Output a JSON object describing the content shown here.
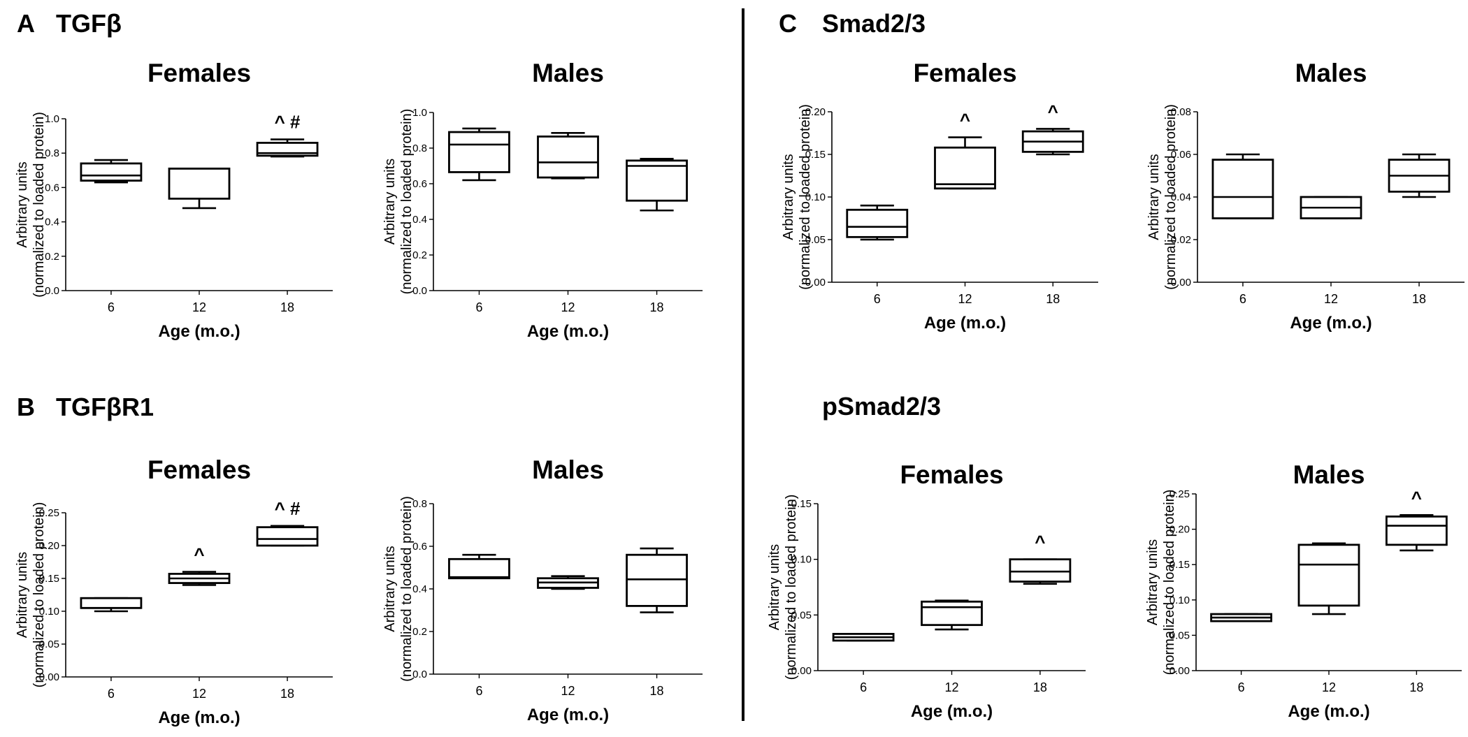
{
  "figure": {
    "panels": [
      {
        "letter": "A",
        "title": "TGFβ"
      },
      {
        "letter": "B",
        "title": "TGFβR1"
      },
      {
        "letter": "C",
        "title": "Smad2/3"
      }
    ],
    "subtitle_c2": "pSmad2/3"
  },
  "chart_data": [
    {
      "type": "box",
      "panel": "A",
      "title": "Females",
      "xlabel": "Age (m.o.)",
      "ylabel": [
        "Arbitrary units",
        "(normalized to loaded protein)"
      ],
      "ylim": [
        0,
        1.0
      ],
      "yticks": [
        "0.0",
        "0.2",
        "0.4",
        "0.6",
        "0.8",
        "1.0"
      ],
      "categories": [
        "6",
        "12",
        "18"
      ],
      "boxes": [
        {
          "min": 0.63,
          "q1": 0.64,
          "median": 0.67,
          "q3": 0.74,
          "max": 0.76
        },
        {
          "min": 0.48,
          "q1": 0.535,
          "median": 0.71,
          "q3": 0.71,
          "max": 0.71
        },
        {
          "min": 0.78,
          "q1": 0.785,
          "median": 0.8,
          "q3": 0.86,
          "max": 0.88
        }
      ],
      "annotations": [
        "",
        "",
        "^ #"
      ]
    },
    {
      "type": "box",
      "panel": "A",
      "title": "Males",
      "xlabel": "Age (m.o.)",
      "ylabel": [
        "Arbitrary units",
        "(normalized to loaded protein)"
      ],
      "ylim": [
        0,
        1.0
      ],
      "yticks": [
        "0.0",
        "0.2",
        "0.4",
        "0.6",
        "0.8",
        "1.0"
      ],
      "categories": [
        "6",
        "12",
        "18"
      ],
      "boxes": [
        {
          "min": 0.62,
          "q1": 0.665,
          "median": 0.82,
          "q3": 0.89,
          "max": 0.91
        },
        {
          "min": 0.63,
          "q1": 0.635,
          "median": 0.72,
          "q3": 0.865,
          "max": 0.885
        },
        {
          "min": 0.45,
          "q1": 0.505,
          "median": 0.7,
          "q3": 0.73,
          "max": 0.74
        }
      ],
      "annotations": [
        "",
        "",
        ""
      ]
    },
    {
      "type": "box",
      "panel": "B",
      "title": "Females",
      "xlabel": "Age (m.o.)",
      "ylabel": [
        "Arbitrary units",
        "(normalized to loaded protein)"
      ],
      "ylim": [
        0,
        0.25
      ],
      "yticks": [
        "0.00",
        "0.05",
        "0.10",
        "0.15",
        "0.20",
        "0.25"
      ],
      "categories": [
        "6",
        "12",
        "18"
      ],
      "boxes": [
        {
          "min": 0.1,
          "q1": 0.105,
          "median": 0.105,
          "q3": 0.12,
          "max": 0.12
        },
        {
          "min": 0.14,
          "q1": 0.143,
          "median": 0.15,
          "q3": 0.157,
          "max": 0.16
        },
        {
          "min": 0.2,
          "q1": 0.2,
          "median": 0.21,
          "q3": 0.228,
          "max": 0.23
        }
      ],
      "annotations": [
        "",
        "^",
        "^ #"
      ]
    },
    {
      "type": "box",
      "panel": "B",
      "title": "Males",
      "xlabel": "Age (m.o.)",
      "ylabel": [
        "Arbitrary units",
        "(normalized to loaded protein)"
      ],
      "ylim": [
        0,
        0.8
      ],
      "yticks": [
        "0.0",
        "0.2",
        "0.4",
        "0.6",
        "0.8"
      ],
      "categories": [
        "6",
        "12",
        "18"
      ],
      "boxes": [
        {
          "min": 0.45,
          "q1": 0.45,
          "median": 0.455,
          "q3": 0.54,
          "max": 0.56
        },
        {
          "min": 0.4,
          "q1": 0.405,
          "median": 0.43,
          "q3": 0.45,
          "max": 0.46
        },
        {
          "min": 0.29,
          "q1": 0.32,
          "median": 0.445,
          "q3": 0.56,
          "max": 0.59
        }
      ],
      "annotations": [
        "",
        "",
        ""
      ]
    },
    {
      "type": "box",
      "panel": "C",
      "title": "Females",
      "xlabel": "Age (m.o.)",
      "ylabel": [
        "Arbitrary units",
        "(normalized to loaded protein)"
      ],
      "ylim": [
        0,
        0.2
      ],
      "yticks": [
        "0.00",
        "0.05",
        "0.10",
        "0.15",
        "0.20"
      ],
      "categories": [
        "6",
        "12",
        "18"
      ],
      "boxes": [
        {
          "min": 0.05,
          "q1": 0.053,
          "median": 0.065,
          "q3": 0.085,
          "max": 0.09
        },
        {
          "min": 0.11,
          "q1": 0.11,
          "median": 0.115,
          "q3": 0.158,
          "max": 0.17
        },
        {
          "min": 0.15,
          "q1": 0.153,
          "median": 0.165,
          "q3": 0.177,
          "max": 0.18
        }
      ],
      "annotations": [
        "",
        "^",
        "^"
      ]
    },
    {
      "type": "box",
      "panel": "C",
      "title": "Males",
      "xlabel": "Age (m.o.)",
      "ylabel": [
        "Arbitrary units",
        "(normalized to loaded protein)"
      ],
      "ylim": [
        0,
        0.08
      ],
      "yticks": [
        "0.00",
        "0.02",
        "0.04",
        "0.06",
        "0.08"
      ],
      "categories": [
        "6",
        "12",
        "18"
      ],
      "boxes": [
        {
          "min": 0.03,
          "q1": 0.03,
          "median": 0.04,
          "q3": 0.0575,
          "max": 0.06
        },
        {
          "min": 0.03,
          "q1": 0.03,
          "median": 0.035,
          "q3": 0.04,
          "max": 0.04
        },
        {
          "min": 0.04,
          "q1": 0.0425,
          "median": 0.05,
          "q3": 0.0575,
          "max": 0.06
        }
      ],
      "annotations": [
        "",
        "",
        ""
      ]
    },
    {
      "type": "box",
      "panel": "C2",
      "title": "Females",
      "xlabel": "Age (m.o.)",
      "ylabel": [
        "Arbitrary units",
        "(normalized to loaded protein)"
      ],
      "ylim": [
        0,
        0.15
      ],
      "yticks": [
        "0.00",
        "0.05",
        "0.10",
        "0.15"
      ],
      "categories": [
        "6",
        "12",
        "18"
      ],
      "boxes": [
        {
          "min": 0.027,
          "q1": 0.027,
          "median": 0.03,
          "q3": 0.033,
          "max": 0.033
        },
        {
          "min": 0.037,
          "q1": 0.041,
          "median": 0.057,
          "q3": 0.062,
          "max": 0.063
        },
        {
          "min": 0.078,
          "q1": 0.08,
          "median": 0.089,
          "q3": 0.1,
          "max": 0.1
        }
      ],
      "annotations": [
        "",
        "",
        "^"
      ]
    },
    {
      "type": "box",
      "panel": "C2",
      "title": "Males",
      "xlabel": "Age (m.o.)",
      "ylabel": [
        "Arbitrary units",
        "(normalized to loaded protein)"
      ],
      "ylim": [
        0,
        0.25
      ],
      "yticks": [
        "0.00",
        "0.05",
        "0.10",
        "0.15",
        "0.20",
        "0.25"
      ],
      "categories": [
        "6",
        "12",
        "18"
      ],
      "boxes": [
        {
          "min": 0.07,
          "q1": 0.07,
          "median": 0.075,
          "q3": 0.08,
          "max": 0.08
        },
        {
          "min": 0.08,
          "q1": 0.092,
          "median": 0.15,
          "q3": 0.178,
          "max": 0.18
        },
        {
          "min": 0.17,
          "q1": 0.178,
          "median": 0.205,
          "q3": 0.218,
          "max": 0.22
        }
      ],
      "annotations": [
        "",
        "",
        "^"
      ]
    }
  ]
}
